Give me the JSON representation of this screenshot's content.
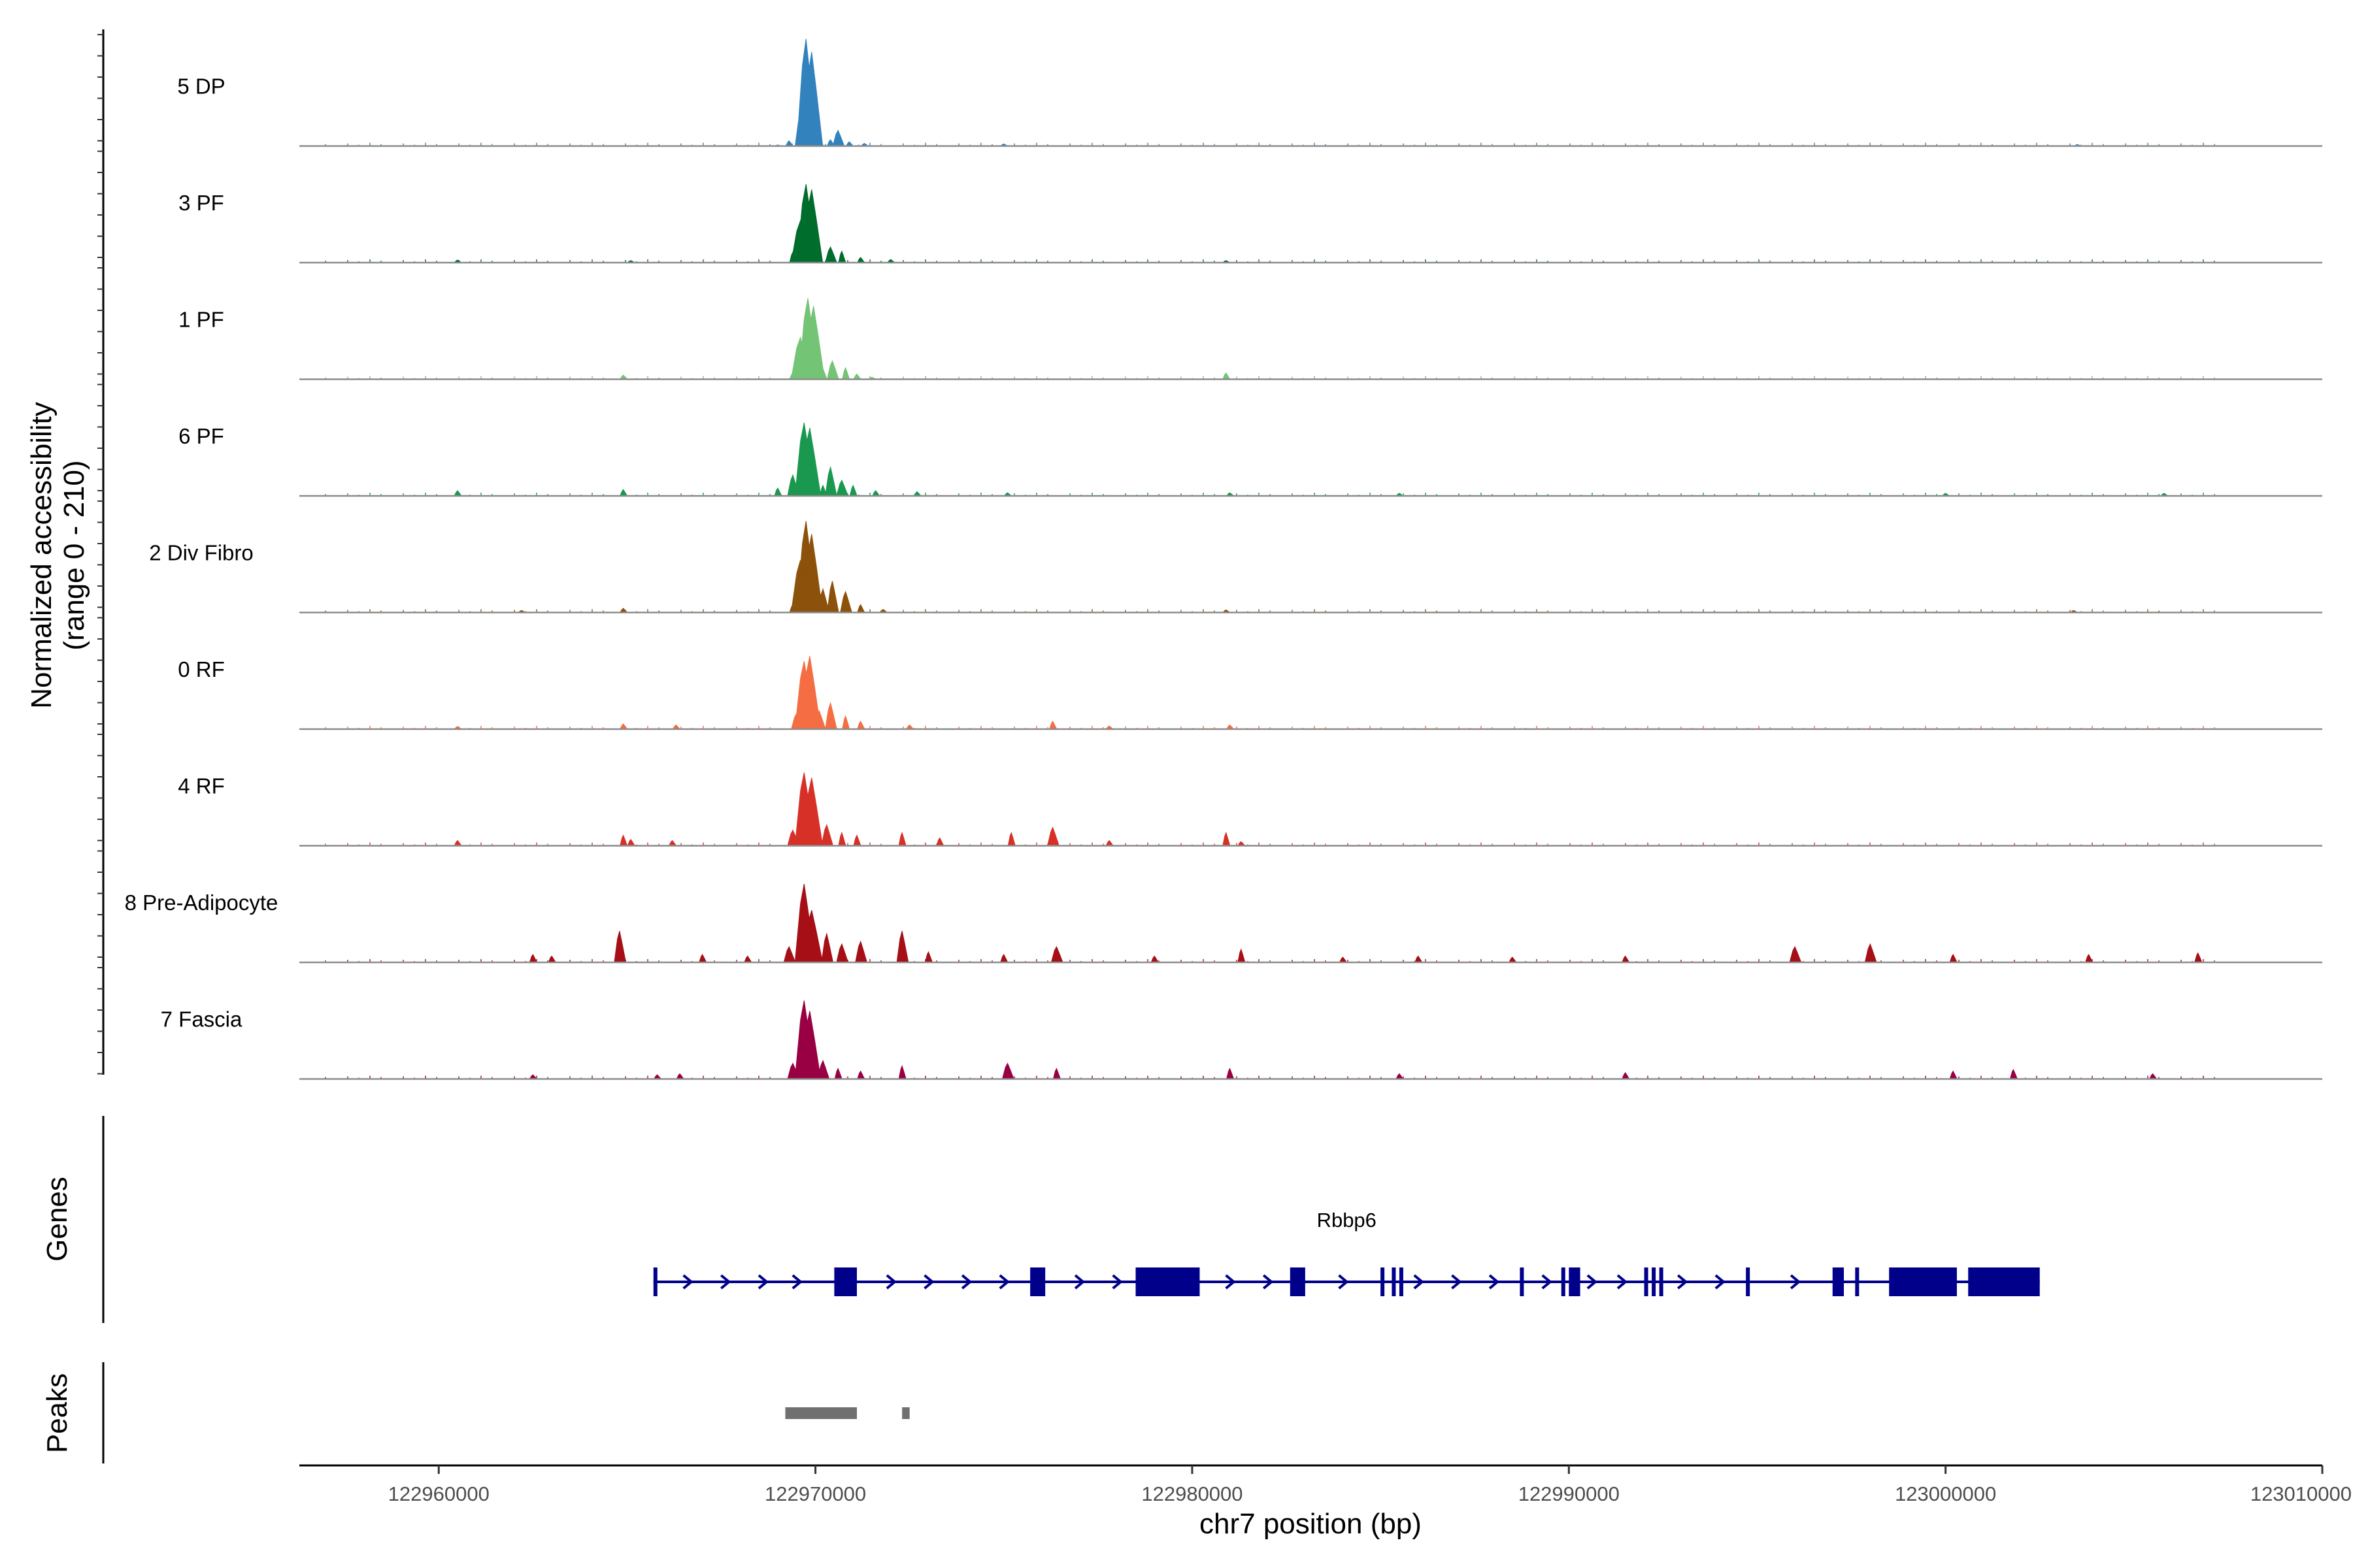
{
  "chart_data": {
    "type": "area",
    "title": "",
    "ylabel_line1": "Normalized accessibility",
    "ylabel_line2": "(range 0 - 210)",
    "xlabel": "chr7 position (bp)",
    "xlim": [
      122956300,
      123010000
    ],
    "ylim": [
      0,
      210
    ],
    "x_ticks": [
      122960000,
      122970000,
      122980000,
      122990000,
      123000000,
      123010000
    ],
    "x_tick_labels": [
      "122960000",
      "122970000",
      "122980000",
      "122990000",
      "123000000",
      "123010000"
    ],
    "series": [
      {
        "name": "5 DP",
        "color": "#3182bd",
        "profile": [
          [
            122969000,
            2
          ],
          [
            122969300,
            10
          ],
          [
            122969600,
            60
          ],
          [
            122969750,
            205
          ],
          [
            122969900,
            180
          ],
          [
            122970100,
            25
          ],
          [
            122970400,
            12
          ],
          [
            122970600,
            30
          ],
          [
            122970900,
            8
          ],
          [
            122971300,
            5
          ],
          [
            122975000,
            4
          ],
          [
            123003500,
            3
          ]
        ]
      },
      {
        "name": "3 PF",
        "color": "#006d2c",
        "profile": [
          [
            122960500,
            5
          ],
          [
            122965100,
            4
          ],
          [
            122969400,
            20
          ],
          [
            122969600,
            80
          ],
          [
            122969750,
            150
          ],
          [
            122969900,
            140
          ],
          [
            122970100,
            20
          ],
          [
            122970400,
            30
          ],
          [
            122970700,
            22
          ],
          [
            122971200,
            10
          ],
          [
            122972000,
            6
          ],
          [
            122980900,
            4
          ]
        ]
      },
      {
        "name": "1 PF",
        "color": "#74c476",
        "profile": [
          [
            122964900,
            8
          ],
          [
            122969400,
            12
          ],
          [
            122969600,
            80
          ],
          [
            122969800,
            155
          ],
          [
            122969950,
            140
          ],
          [
            122970200,
            20
          ],
          [
            122970450,
            35
          ],
          [
            122970800,
            22
          ],
          [
            122971100,
            10
          ],
          [
            122971500,
            4
          ],
          [
            122980900,
            12
          ]
        ]
      },
      {
        "name": "6 PF",
        "color": "#1a9850",
        "profile": [
          [
            122960500,
            10
          ],
          [
            122964900,
            12
          ],
          [
            122969000,
            15
          ],
          [
            122969400,
            40
          ],
          [
            122969700,
            140
          ],
          [
            122969850,
            130
          ],
          [
            122970200,
            20
          ],
          [
            122970400,
            55
          ],
          [
            122970700,
            30
          ],
          [
            122971000,
            20
          ],
          [
            122971600,
            10
          ],
          [
            122972700,
            8
          ],
          [
            122975100,
            6
          ],
          [
            122981000,
            6
          ],
          [
            122985500,
            5
          ],
          [
            123000000,
            5
          ],
          [
            123005800,
            5
          ]
        ]
      },
      {
        "name": "2 Div Fibro",
        "color": "#8c510a",
        "profile": [
          [
            122962200,
            4
          ],
          [
            122964900,
            8
          ],
          [
            122969400,
            15
          ],
          [
            122969600,
            100
          ],
          [
            122969750,
            175
          ],
          [
            122969900,
            150
          ],
          [
            122970200,
            45
          ],
          [
            122970450,
            60
          ],
          [
            122970800,
            40
          ],
          [
            122971200,
            15
          ],
          [
            122971800,
            6
          ],
          [
            122980900,
            5
          ],
          [
            123003400,
            4
          ]
        ]
      },
      {
        "name": "0 RF",
        "color": "#f46d43",
        "profile": [
          [
            122960500,
            5
          ],
          [
            122964900,
            10
          ],
          [
            122966300,
            8
          ],
          [
            122969500,
            30
          ],
          [
            122969700,
            130
          ],
          [
            122969850,
            140
          ],
          [
            122970100,
            35
          ],
          [
            122970400,
            50
          ],
          [
            122970800,
            25
          ],
          [
            122971200,
            15
          ],
          [
            122972500,
            8
          ],
          [
            122976300,
            15
          ],
          [
            122977800,
            6
          ],
          [
            122981000,
            8
          ]
        ]
      },
      {
        "name": "4 RF",
        "color": "#d73027",
        "profile": [
          [
            122960500,
            10
          ],
          [
            122964900,
            20
          ],
          [
            122965100,
            12
          ],
          [
            122966200,
            10
          ],
          [
            122969400,
            30
          ],
          [
            122969700,
            140
          ],
          [
            122969900,
            130
          ],
          [
            122970300,
            40
          ],
          [
            122970700,
            25
          ],
          [
            122971100,
            20
          ],
          [
            122972300,
            25
          ],
          [
            122973300,
            15
          ],
          [
            122975200,
            25
          ],
          [
            122976300,
            35
          ],
          [
            122977800,
            10
          ],
          [
            122980900,
            25
          ],
          [
            122981300,
            8
          ]
        ]
      },
      {
        "name": "8 Pre-Adipocyte",
        "color": "#a50f15",
        "profile": [
          [
            122962500,
            15
          ],
          [
            122963000,
            12
          ],
          [
            122964800,
            60
          ],
          [
            122967000,
            15
          ],
          [
            122968200,
            12
          ],
          [
            122969300,
            30
          ],
          [
            122969700,
            150
          ],
          [
            122969900,
            100
          ],
          [
            122970300,
            55
          ],
          [
            122970700,
            35
          ],
          [
            122971200,
            40
          ],
          [
            122972300,
            60
          ],
          [
            122973000,
            20
          ],
          [
            122975000,
            15
          ],
          [
            122976400,
            30
          ],
          [
            122979000,
            12
          ],
          [
            122981300,
            25
          ],
          [
            122984000,
            10
          ],
          [
            122986000,
            12
          ],
          [
            122988500,
            10
          ],
          [
            122991500,
            12
          ],
          [
            122996000,
            30
          ],
          [
            122998000,
            35
          ],
          [
            123000200,
            15
          ],
          [
            123003800,
            15
          ],
          [
            123006700,
            18
          ]
        ]
      },
      {
        "name": "7 Fascia",
        "color": "#980043",
        "profile": [
          [
            122962500,
            8
          ],
          [
            122965800,
            8
          ],
          [
            122966400,
            10
          ],
          [
            122969400,
            30
          ],
          [
            122969700,
            150
          ],
          [
            122969850,
            130
          ],
          [
            122970200,
            35
          ],
          [
            122970600,
            20
          ],
          [
            122971200,
            15
          ],
          [
            122972300,
            25
          ],
          [
            122975100,
            30
          ],
          [
            122976400,
            20
          ],
          [
            122981000,
            20
          ],
          [
            122985500,
            10
          ],
          [
            122991500,
            12
          ],
          [
            123000200,
            15
          ],
          [
            123001800,
            18
          ],
          [
            123005500,
            10
          ]
        ]
      }
    ],
    "gene": {
      "name": "Rbbp6",
      "color": "#00008b",
      "start": 122965700,
      "end": 123002500,
      "exons": [
        [
          122965700,
          122965800
        ],
        [
          122970500,
          122971100
        ],
        [
          122975700,
          122976100
        ],
        [
          122978500,
          122980200
        ],
        [
          122982600,
          122983000
        ],
        [
          122985000,
          122985100
        ],
        [
          122985300,
          122985400
        ],
        [
          122985500,
          122985600
        ],
        [
          122988700,
          122988800
        ],
        [
          122989800,
          122989900
        ],
        [
          122990000,
          122990300
        ],
        [
          122992000,
          122992100
        ],
        [
          122992200,
          122992300
        ],
        [
          122992400,
          122992500
        ],
        [
          122994700,
          122994800
        ],
        [
          122997000,
          122997300
        ],
        [
          122997600,
          122997700
        ],
        [
          122998500,
          123000300
        ],
        [
          123000600,
          123002500
        ]
      ],
      "arrows": [
        122966600,
        122967600,
        122968600,
        122969500,
        122972000,
        122973000,
        122974000,
        122975000,
        122977000,
        122978000,
        122981000,
        122982000,
        122984000,
        122986000,
        122987000,
        122988000,
        122989400,
        122990600,
        122991400,
        122993000,
        122994000,
        122996000,
        122999800
      ]
    },
    "peaks": {
      "label": "",
      "color": "#707070",
      "regions": [
        [
          122969200,
          122971100
        ],
        [
          122972300,
          122972500
        ]
      ]
    },
    "panel_titles": {
      "genes": "Genes",
      "peaks": "Peaks"
    }
  }
}
